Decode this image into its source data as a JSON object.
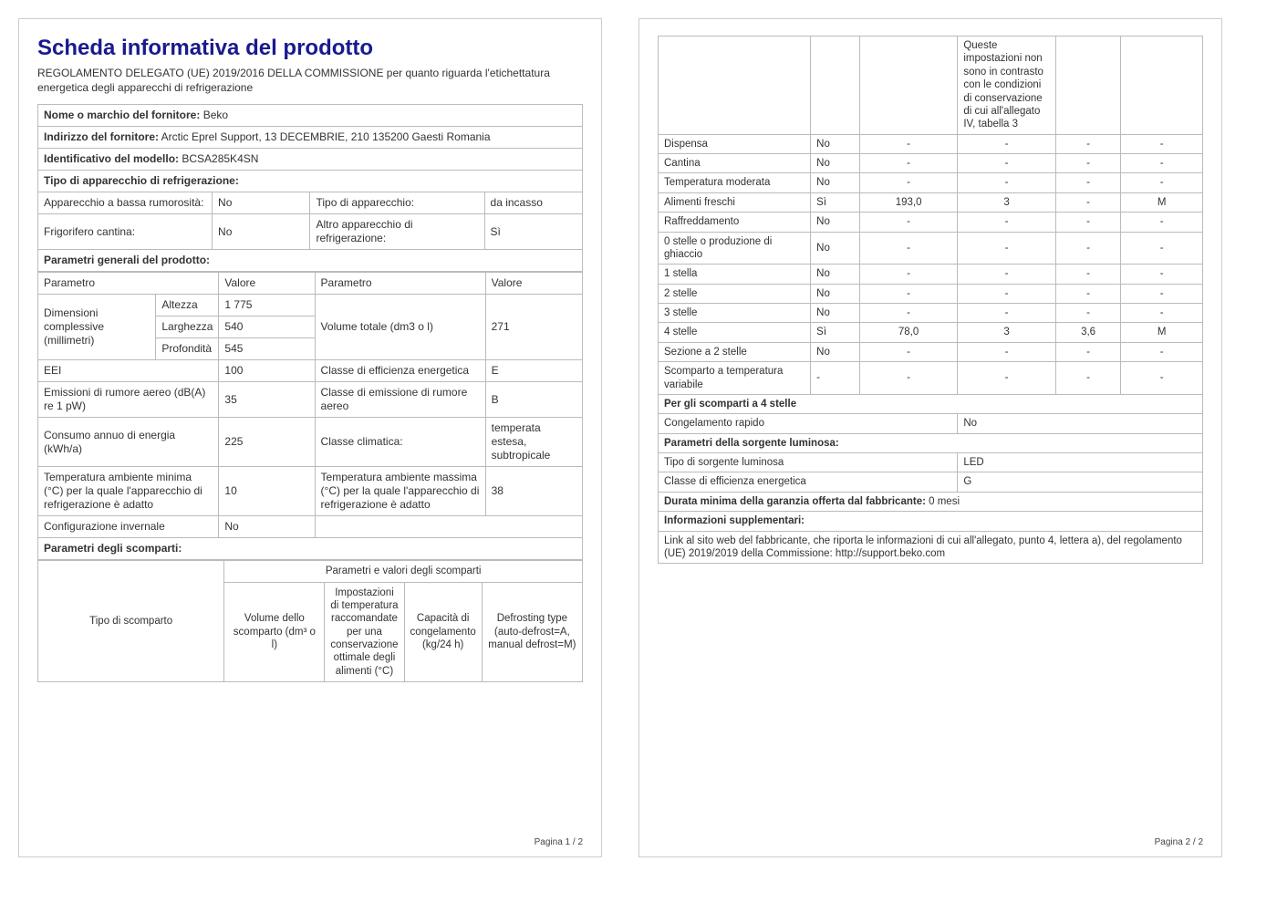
{
  "page1": {
    "title": "Scheda informativa del prodotto",
    "subtitle": "REGOLAMENTO DELEGATO (UE) 2019/2016 DELLA COMMISSIONE per quanto riguarda l'etichettatura energetica degli apparecchi di refrigerazione",
    "supplier_name_label": "Nome o marchio del fornitore:",
    "supplier_name": "Beko",
    "supplier_addr_label": "Indirizzo del fornitore:",
    "supplier_addr": "Arctic Eprel Support, 13 DECEMBRIE, 210 135200 Gaesti Romania",
    "model_id_label": "Identificativo del modello:",
    "model_id": "BCSA285K4SN",
    "appliance_type_header": "Tipo di apparecchio di refrigerazione:",
    "low_noise_label": "Apparecchio a bassa rumorosità:",
    "low_noise": "No",
    "appliance_type_label": "Tipo di apparecchio:",
    "appliance_type": "da incasso",
    "wine_fridge_label": "Frigorifero cantina:",
    "wine_fridge": "No",
    "other_appliance_label": "Altro apparecchio di refrigerazione:",
    "other_appliance": "Sì",
    "general_params_header": "Parametri generali del prodotto:",
    "param_col": "Parametro",
    "value_col": "Valore",
    "dimensions_label": "Dimensioni complessive (millimetri)",
    "height_label": "Altezza",
    "height": "1 775",
    "width_label": "Larghezza",
    "width": "540",
    "depth_label": "Profondità",
    "depth": "545",
    "total_volume_label": "Volume totale (dm3 o l)",
    "total_volume": "271",
    "eei_label": "EEI",
    "eei": "100",
    "energy_class_label": "Classe di efficienza energetica",
    "energy_class": "E",
    "noise_label": "Emissioni di rumore aereo (dB(A) re 1 pW)",
    "noise": "35",
    "noise_class_label": "Classe di emissione di rumore aereo",
    "noise_class": "B",
    "annual_energy_label": "Consumo annuo di energia (kWh/a)",
    "annual_energy": "225",
    "climate_class_label": "Classe climatica:",
    "climate_class": "temperata estesa, subtropicale",
    "min_temp_label": "Temperatura ambiente minima (°C) per la quale l'apparecchio di refrigerazione è adatto",
    "min_temp": "10",
    "max_temp_label": "Temperatura ambiente massima (°C) per la quale l'apparecchio di refrigerazione è adatto",
    "max_temp": "38",
    "winter_config_label": "Configurazione invernale",
    "winter_config": "No",
    "compartments_header": "Parametri degli scomparti:",
    "comp_params_header": "Parametri e valori degli scomparti",
    "comp_type_col": "Tipo di scomparto",
    "comp_volume_col": "Volume dello scomparto (dm³ o l)",
    "comp_temp_col": "Impostazioni di temperatura raccomandate per una conservazione ottimale degli alimenti (°C)",
    "comp_freeze_col": "Capacità di congelamento (kg/24 h)",
    "comp_defrost_col": "Defrosting type (auto-defrost=A, manual defrost=M)",
    "footer": "Pagina 1 / 2"
  },
  "page2": {
    "temp_note": "Queste impostazioni non sono in contrasto con le condizioni di conservazione di cui all'allegato IV, tabella 3",
    "rows": [
      {
        "name": "Dispensa",
        "v1": "No",
        "v2": "-",
        "v3": "-",
        "v4": "-",
        "v5": "-"
      },
      {
        "name": "Cantina",
        "v1": "No",
        "v2": "-",
        "v3": "-",
        "v4": "-",
        "v5": "-"
      },
      {
        "name": "Temperatura moderata",
        "v1": "No",
        "v2": "-",
        "v3": "-",
        "v4": "-",
        "v5": "-"
      },
      {
        "name": "Alimenti freschi",
        "v1": "Sì",
        "v2": "193,0",
        "v3": "3",
        "v4": "-",
        "v5": "M"
      },
      {
        "name": "Raffreddamento",
        "v1": "No",
        "v2": "-",
        "v3": "-",
        "v4": "-",
        "v5": "-"
      },
      {
        "name": "0 stelle o produzione di ghiaccio",
        "v1": "No",
        "v2": "-",
        "v3": "-",
        "v4": "-",
        "v5": "-"
      },
      {
        "name": "1 stella",
        "v1": "No",
        "v2": "-",
        "v3": "-",
        "v4": "-",
        "v5": "-"
      },
      {
        "name": "2 stelle",
        "v1": "No",
        "v2": "-",
        "v3": "-",
        "v4": "-",
        "v5": "-"
      },
      {
        "name": "3 stelle",
        "v1": "No",
        "v2": "-",
        "v3": "-",
        "v4": "-",
        "v5": "-"
      },
      {
        "name": "4 stelle",
        "v1": "Sì",
        "v2": "78,0",
        "v3": "3",
        "v4": "3,6",
        "v5": "M"
      },
      {
        "name": "Sezione a 2 stelle",
        "v1": "No",
        "v2": "-",
        "v3": "-",
        "v4": "-",
        "v5": "-"
      },
      {
        "name": "Scomparto a temperatura variabile",
        "v1": "-",
        "v2": "-",
        "v3": "-",
        "v4": "-",
        "v5": "-"
      }
    ],
    "four_star_header": "Per gli scomparti a 4 stelle",
    "fast_freeze_label": "Congelamento rapido",
    "fast_freeze": "No",
    "light_source_header": "Parametri della sorgente luminosa:",
    "light_type_label": "Tipo di sorgente luminosa",
    "light_type": "LED",
    "light_class_label": "Classe di efficienza energetica",
    "light_class": "G",
    "warranty_label": "Durata minima della garanzia offerta dal fabbricante:",
    "warranty": "0 mesi",
    "supplementary_header": "Informazioni supplementari:",
    "link_text": "Link al sito web del fabbricante, che riporta le informazioni di cui all'allegato, punto 4, lettera a), del regolamento (UE) 2019/2019 della Commissione:  http://support.beko.com",
    "footer": "Pagina 2 / 2"
  }
}
